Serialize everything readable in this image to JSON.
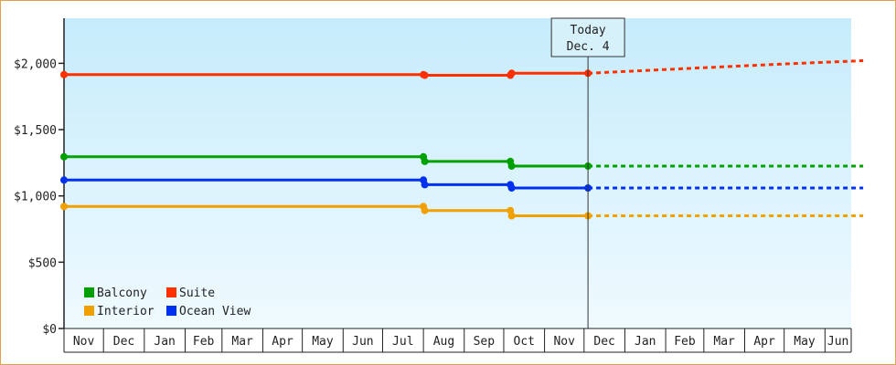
{
  "chart_data": {
    "type": "line",
    "y_ticks": [
      {
        "value": 0,
        "label": "$0"
      },
      {
        "value": 500,
        "label": "$500"
      },
      {
        "value": 1000,
        "label": "$1,000"
      },
      {
        "value": 1500,
        "label": "$1,500"
      },
      {
        "value": 2000,
        "label": "$2,000"
      }
    ],
    "ylim": [
      0,
      2340
    ],
    "xlim": [
      "2023-10-25",
      "2024-06-30"
    ],
    "month_ticks": [
      {
        "label": "Nov",
        "start": "2022-11-01"
      },
      {
        "label": "Dec",
        "start": "2022-12-01"
      },
      {
        "label": "Jan",
        "start": "2023-01-01"
      },
      {
        "label": "Feb",
        "start": "2023-02-01"
      },
      {
        "label": "Mar",
        "start": "2023-03-01"
      },
      {
        "label": "Apr",
        "start": "2023-04-01"
      },
      {
        "label": "May",
        "start": "2023-05-01"
      },
      {
        "label": "Jun",
        "start": "2023-06-01"
      },
      {
        "label": "Jul",
        "start": "2023-07-01"
      },
      {
        "label": "Aug",
        "start": "2023-08-01"
      },
      {
        "label": "Sep",
        "start": "2023-09-01"
      },
      {
        "label": "Oct",
        "start": "2023-10-01"
      },
      {
        "label": "Nov",
        "start": "2023-11-01"
      },
      {
        "label": "Dec",
        "start": "2023-12-01"
      },
      {
        "label": "Jan",
        "start": "2024-01-01"
      },
      {
        "label": "Feb",
        "start": "2024-02-01"
      },
      {
        "label": "Mar",
        "start": "2024-03-01"
      },
      {
        "label": "Apr",
        "start": "2024-04-01"
      },
      {
        "label": "May",
        "start": "2024-05-01"
      },
      {
        "label": "Jun",
        "start": "2024-06-01"
      }
    ],
    "today": {
      "line1": "Today",
      "line2": "Dec. 4",
      "date": "2023-12-04"
    },
    "series": [
      {
        "name": "Balcony",
        "color": "#00a000",
        "actual": [
          [
            "2022-11-01",
            1295
          ],
          [
            "2023-08-01",
            1295
          ],
          [
            "2023-08-02",
            1260
          ],
          [
            "2023-10-06",
            1260
          ],
          [
            "2023-10-07",
            1225
          ],
          [
            "2023-12-04",
            1225
          ]
        ],
        "forecast": [
          [
            "2023-12-04",
            1225
          ],
          [
            "2024-06-30",
            1225
          ]
        ]
      },
      {
        "name": "Suite",
        "color": "#ff3000",
        "actual": [
          [
            "2022-11-01",
            1915
          ],
          [
            "2023-08-01",
            1915
          ],
          [
            "2023-08-02",
            1910
          ],
          [
            "2023-10-06",
            1910
          ],
          [
            "2023-10-07",
            1925
          ],
          [
            "2023-12-04",
            1925
          ]
        ],
        "forecast": [
          [
            "2023-12-04",
            1925
          ],
          [
            "2024-02-15",
            1960
          ],
          [
            "2024-05-01",
            1995
          ],
          [
            "2024-06-30",
            2020
          ]
        ]
      },
      {
        "name": "Interior",
        "color": "#f0a000",
        "actual": [
          [
            "2022-11-01",
            920
          ],
          [
            "2023-08-01",
            920
          ],
          [
            "2023-08-02",
            890
          ],
          [
            "2023-10-06",
            890
          ],
          [
            "2023-10-07",
            850
          ],
          [
            "2023-12-04",
            850
          ]
        ],
        "forecast": [
          [
            "2023-12-04",
            850
          ],
          [
            "2024-06-30",
            850
          ]
        ]
      },
      {
        "name": "Ocean View",
        "color": "#0030f0",
        "actual": [
          [
            "2022-11-01",
            1120
          ],
          [
            "2023-08-01",
            1120
          ],
          [
            "2023-08-02",
            1085
          ],
          [
            "2023-10-06",
            1085
          ],
          [
            "2023-10-07",
            1060
          ],
          [
            "2023-12-04",
            1060
          ]
        ],
        "forecast": [
          [
            "2023-12-04",
            1060
          ],
          [
            "2024-06-30",
            1060
          ]
        ]
      }
    ],
    "legend_position": "bottom-left",
    "grid": false
  }
}
